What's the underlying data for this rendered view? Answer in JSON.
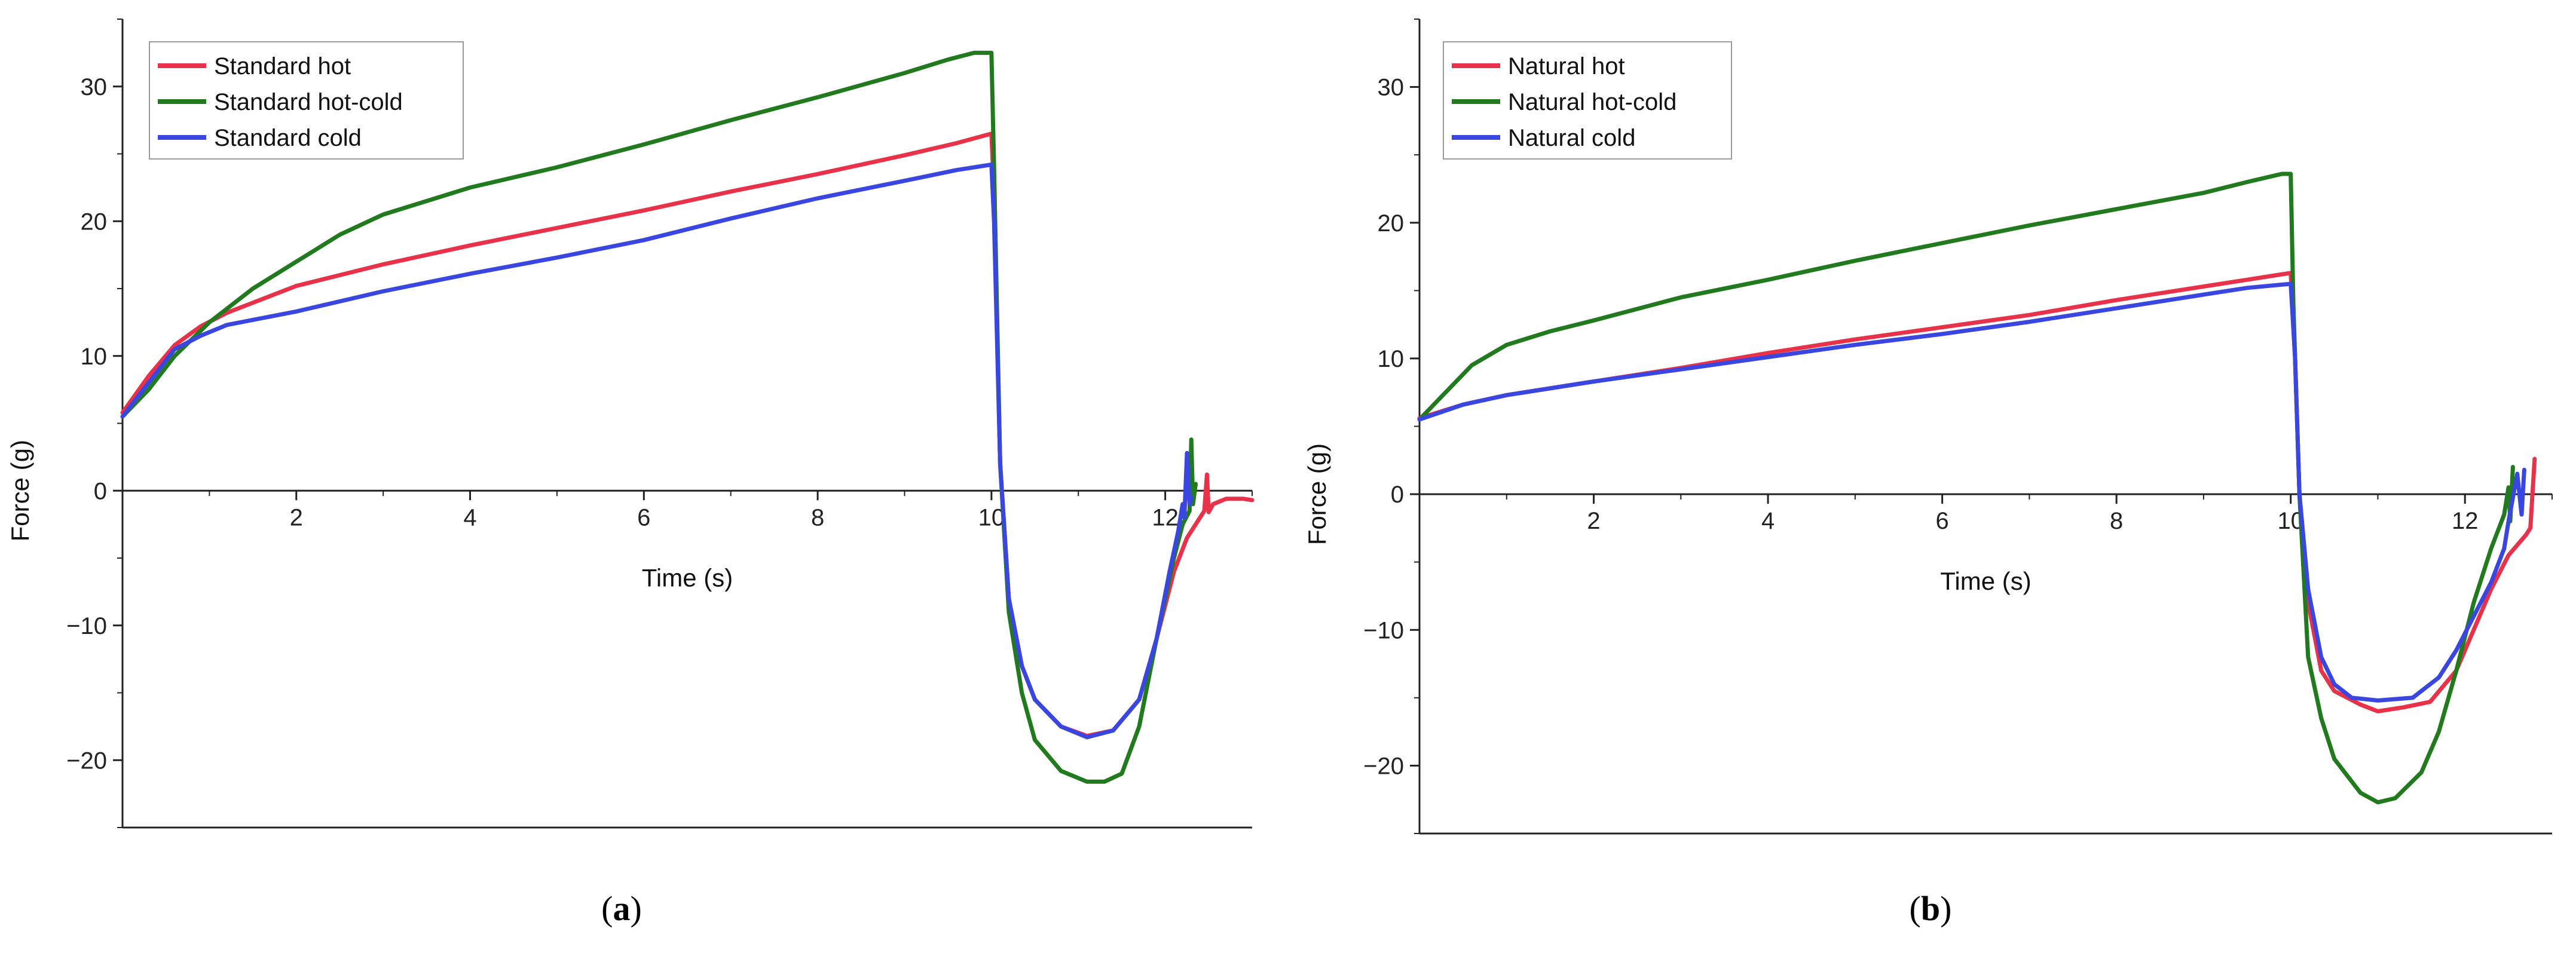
{
  "chart_data": [
    {
      "type": "line",
      "panel_label": "a",
      "title": "",
      "xlabel": "Time (s)",
      "ylabel": "Force (g)",
      "xlim": [
        0,
        13
      ],
      "ylim": [
        -25,
        35
      ],
      "xticks": [
        2,
        4,
        6,
        8,
        10,
        12
      ],
      "yticks": [
        -20,
        -10,
        0,
        10,
        20,
        30
      ],
      "legend_position": "top-left",
      "series": [
        {
          "name": "Standard hot",
          "color": "#e8324a",
          "x": [
            0,
            0.3,
            0.6,
            0.9,
            1.2,
            2,
            3,
            4,
            5,
            6,
            7,
            8,
            9,
            9.6,
            10,
            10.03,
            10.1,
            10.2,
            10.35,
            10.5,
            10.8,
            11.1,
            11.4,
            11.7,
            11.9,
            12.1,
            12.25,
            12.35,
            12.4,
            12.45,
            12.48,
            12.5,
            12.55,
            12.7,
            12.9,
            13
          ],
          "y": [
            5.8,
            8.5,
            10.8,
            12.2,
            13.2,
            15.2,
            16.8,
            18.2,
            19.5,
            20.8,
            22.2,
            23.5,
            24.9,
            25.8,
            26.5,
            22,
            2,
            -8,
            -13,
            -15.5,
            -17.5,
            -18.2,
            -17.8,
            -15.5,
            -11,
            -6,
            -3.5,
            -2.5,
            -2,
            -1.5,
            1.2,
            -1.6,
            -1,
            -0.6,
            -0.6,
            -0.7
          ]
        },
        {
          "name": "Standard hot-cold",
          "color": "#217a1e",
          "x": [
            0,
            0.3,
            0.6,
            1,
            1.5,
            2,
            2.5,
            3,
            4,
            5,
            6,
            7,
            8,
            9,
            9.5,
            9.8,
            10,
            10.03,
            10.1,
            10.2,
            10.35,
            10.5,
            10.8,
            11.1,
            11.3,
            11.5,
            11.7,
            11.9,
            12.1,
            12.2,
            12.28,
            12.3,
            12.32,
            12.35
          ],
          "y": [
            5.5,
            7.5,
            10,
            12.5,
            15,
            17,
            19,
            20.5,
            22.5,
            24,
            25.7,
            27.5,
            29.2,
            31,
            32,
            32.5,
            32.5,
            24,
            2,
            -9,
            -15,
            -18.5,
            -20.8,
            -21.6,
            -21.6,
            -21,
            -17.5,
            -11,
            -5,
            -2.5,
            -1.5,
            3.8,
            -1,
            0.5
          ]
        },
        {
          "name": "Standard cold",
          "color": "#3a46e0",
          "x": [
            0,
            0.3,
            0.6,
            0.9,
            1.2,
            2,
            3,
            4,
            5,
            6,
            7,
            8,
            9,
            9.6,
            10,
            10.03,
            10.1,
            10.2,
            10.35,
            10.5,
            10.8,
            11.1,
            11.4,
            11.7,
            11.9,
            12.05,
            12.15,
            12.2,
            12.22,
            12.25,
            12.28,
            12.3
          ],
          "y": [
            5.5,
            8,
            10.5,
            11.5,
            12.3,
            13.3,
            14.8,
            16.1,
            17.3,
            18.6,
            20.2,
            21.7,
            23,
            23.8,
            24.2,
            20,
            2,
            -8,
            -13,
            -15.5,
            -17.5,
            -18.3,
            -17.8,
            -15.5,
            -11,
            -6,
            -3,
            -1,
            -2,
            2.8,
            -1,
            -0.5
          ]
        }
      ]
    },
    {
      "type": "line",
      "panel_label": "b",
      "title": "",
      "xlabel": "Time (s)",
      "ylabel": "Force (g)",
      "xlim": [
        0,
        13
      ],
      "ylim": [
        -25,
        35
      ],
      "xticks": [
        2,
        4,
        6,
        8,
        10,
        12
      ],
      "yticks": [
        -20,
        -10,
        0,
        10,
        20,
        30
      ],
      "legend_position": "top-left",
      "series": [
        {
          "name": "Natural hot",
          "color": "#e8324a",
          "x": [
            0,
            0.5,
            1,
            2,
            3,
            4,
            5,
            6,
            7,
            8,
            9,
            9.5,
            10,
            10.05,
            10.1,
            10.2,
            10.35,
            10.5,
            10.8,
            11,
            11.3,
            11.6,
            11.9,
            12.1,
            12.3,
            12.5,
            12.7,
            12.75,
            12.8
          ],
          "y": [
            5.6,
            6.6,
            7.3,
            8.3,
            9.3,
            10.4,
            11.4,
            12.3,
            13.2,
            14.3,
            15.3,
            15.8,
            16.3,
            10,
            0,
            -8,
            -13,
            -14.5,
            -15.5,
            -16,
            -15.7,
            -15.3,
            -13,
            -10,
            -7,
            -4.5,
            -3,
            -2.5,
            2.6
          ]
        },
        {
          "name": "Natural hot-cold",
          "color": "#217a1e",
          "x": [
            0,
            0.3,
            0.6,
            1,
            1.5,
            2,
            3,
            4,
            5,
            6,
            7,
            8,
            9,
            9.5,
            9.9,
            10,
            10.03,
            10.1,
            10.2,
            10.35,
            10.5,
            10.8,
            11,
            11.2,
            11.5,
            11.7,
            11.9,
            12.1,
            12.3,
            12.45,
            12.5,
            12.52,
            12.55
          ],
          "y": [
            5.5,
            7.5,
            9.5,
            11,
            12,
            12.8,
            14.5,
            15.8,
            17.2,
            18.5,
            19.8,
            21,
            22.2,
            23,
            23.6,
            23.6,
            14,
            0,
            -12,
            -16.5,
            -19.5,
            -22,
            -22.7,
            -22.4,
            -20.5,
            -17.5,
            -13,
            -8,
            -4,
            -1.5,
            0.5,
            -2,
            2
          ]
        },
        {
          "name": "Natural cold",
          "color": "#3a46e0",
          "x": [
            0,
            0.5,
            1,
            2,
            3,
            4,
            5,
            6,
            7,
            8,
            9,
            9.5,
            10,
            10.05,
            10.1,
            10.2,
            10.35,
            10.5,
            10.7,
            11,
            11.4,
            11.7,
            11.9,
            12.1,
            12.3,
            12.45,
            12.5,
            12.6,
            12.65,
            12.68
          ],
          "y": [
            5.5,
            6.6,
            7.3,
            8.3,
            9.2,
            10.1,
            11,
            11.8,
            12.7,
            13.7,
            14.7,
            15.2,
            15.5,
            10,
            0,
            -7,
            -12,
            -14,
            -15,
            -15.2,
            -15,
            -13.5,
            -11.5,
            -9,
            -6.5,
            -4,
            -2,
            1.5,
            -1.5,
            1.8
          ]
        }
      ]
    }
  ],
  "captions": {
    "a": "a",
    "b": "b",
    "open_paren": "(",
    "close_paren": ")"
  }
}
